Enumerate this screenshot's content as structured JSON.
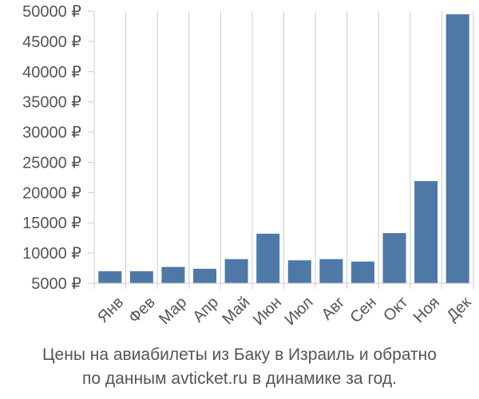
{
  "chart_data": {
    "type": "bar",
    "categories": [
      "Янв",
      "Фев",
      "Мар",
      "Апр",
      "Май",
      "Июн",
      "Июл",
      "Авг",
      "Сен",
      "Окт",
      "Ноя",
      "Дек"
    ],
    "values": [
      7000,
      7000,
      7700,
      7400,
      9000,
      13200,
      8800,
      9000,
      8600,
      13300,
      21900,
      49500
    ],
    "y_ticks": [
      5000,
      10000,
      15000,
      20000,
      25000,
      30000,
      35000,
      40000,
      45000,
      50000
    ],
    "y_tick_suffix": " ₽",
    "ylim": [
      5000,
      50000
    ],
    "grid": "vertical",
    "bar_color": "#4e79a7",
    "grid_color": "#cccccc"
  },
  "caption": {
    "line1": "Цены на авиабилеты из Баку в Израиль и обратно",
    "line2": "по данным avticket.ru в динамике за год."
  }
}
